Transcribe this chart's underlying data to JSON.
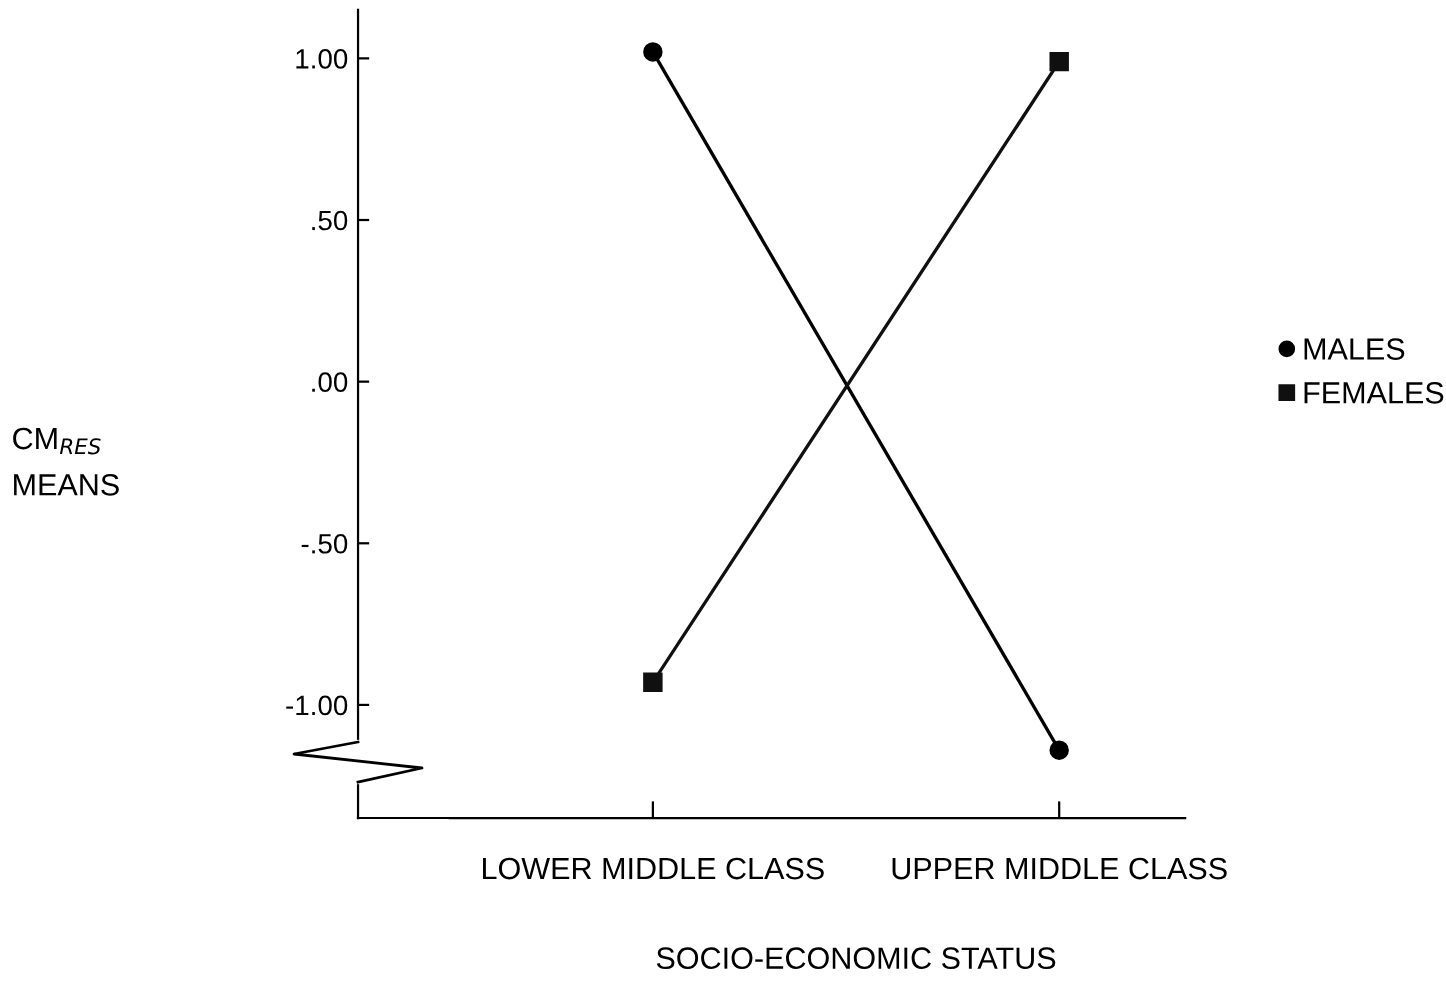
{
  "chart_data": {
    "type": "line",
    "xlabel": "SOCIO-ECONOMIC STATUS",
    "annotations": [
      "CM$_{RES}$\nMEANS"
    ],
    "categories": [
      "LOWER MIDDLE CLASS",
      "UPPER MIDDLE CLASS"
    ],
    "series": [
      {
        "name": "MALES",
        "color": "#000000",
        "marker": "circle",
        "values": [
          1.02,
          -1.14
        ]
      },
      {
        "name": "FEMALES",
        "color": "#101010",
        "marker": "square",
        "values": [
          -0.93,
          0.99
        ]
      }
    ],
    "ylim": [
      -1.35,
      1.15
    ],
    "yticks": [
      {
        "value": 1.0,
        "label": "1.00"
      },
      {
        "value": 0.5,
        "label": ".50"
      },
      {
        "value": 0.0,
        "label": ".00"
      },
      {
        "value": -0.5,
        "label": "-.50"
      },
      {
        "value": -1.0,
        "label": "-1.00"
      }
    ],
    "legend": "right"
  }
}
